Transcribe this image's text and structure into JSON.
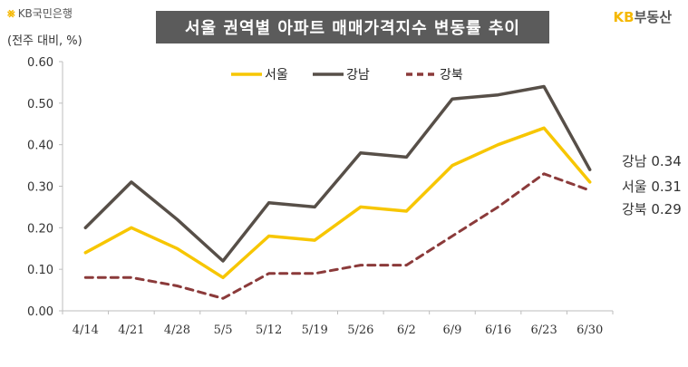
{
  "header": {
    "logo_left_mark": "⨳",
    "logo_left_text": "KB국민은행",
    "unit": "(전주 대비, %)",
    "title": "서울 권역별 아파트 매매가격지수 변동률 추이",
    "logo_right_kb": "KB",
    "logo_right_text": "부동산"
  },
  "chart_data": {
    "type": "line",
    "title": "서울 권역별 아파트 매매가격지수 변동률 추이",
    "ylabel": "(전주 대비, %)",
    "ylim": [
      0,
      0.6
    ],
    "yticks": [
      "0.00",
      "0.10",
      "0.20",
      "0.30",
      "0.40",
      "0.50",
      "0.60"
    ],
    "categories": [
      "4/14",
      "4/21",
      "4/28",
      "5/5",
      "5/12",
      "5/19",
      "5/26",
      "6/2",
      "6/9",
      "6/16",
      "6/23",
      "6/30"
    ],
    "legend_position": "top-center",
    "grid": false,
    "series": [
      {
        "name": "서울",
        "color": "#f7c600",
        "dash": "solid",
        "values": [
          0.14,
          0.2,
          0.15,
          0.08,
          0.18,
          0.17,
          0.25,
          0.24,
          0.35,
          0.4,
          0.44,
          0.31
        ]
      },
      {
        "name": "강남",
        "color": "#574f48",
        "dash": "solid",
        "values": [
          0.2,
          0.31,
          0.22,
          0.12,
          0.26,
          0.25,
          0.38,
          0.37,
          0.51,
          0.52,
          0.54,
          0.34
        ]
      },
      {
        "name": "강북",
        "color": "#8b3a3a",
        "dash": "dashed",
        "values": [
          0.08,
          0.08,
          0.06,
          0.03,
          0.09,
          0.09,
          0.11,
          0.11,
          0.18,
          0.25,
          0.33,
          0.29
        ]
      }
    ],
    "end_labels": [
      {
        "series": "강남",
        "text": "강남 0.34"
      },
      {
        "series": "서울",
        "text": "서울 0.31"
      },
      {
        "series": "강북",
        "text": "강북 0.29"
      }
    ]
  }
}
